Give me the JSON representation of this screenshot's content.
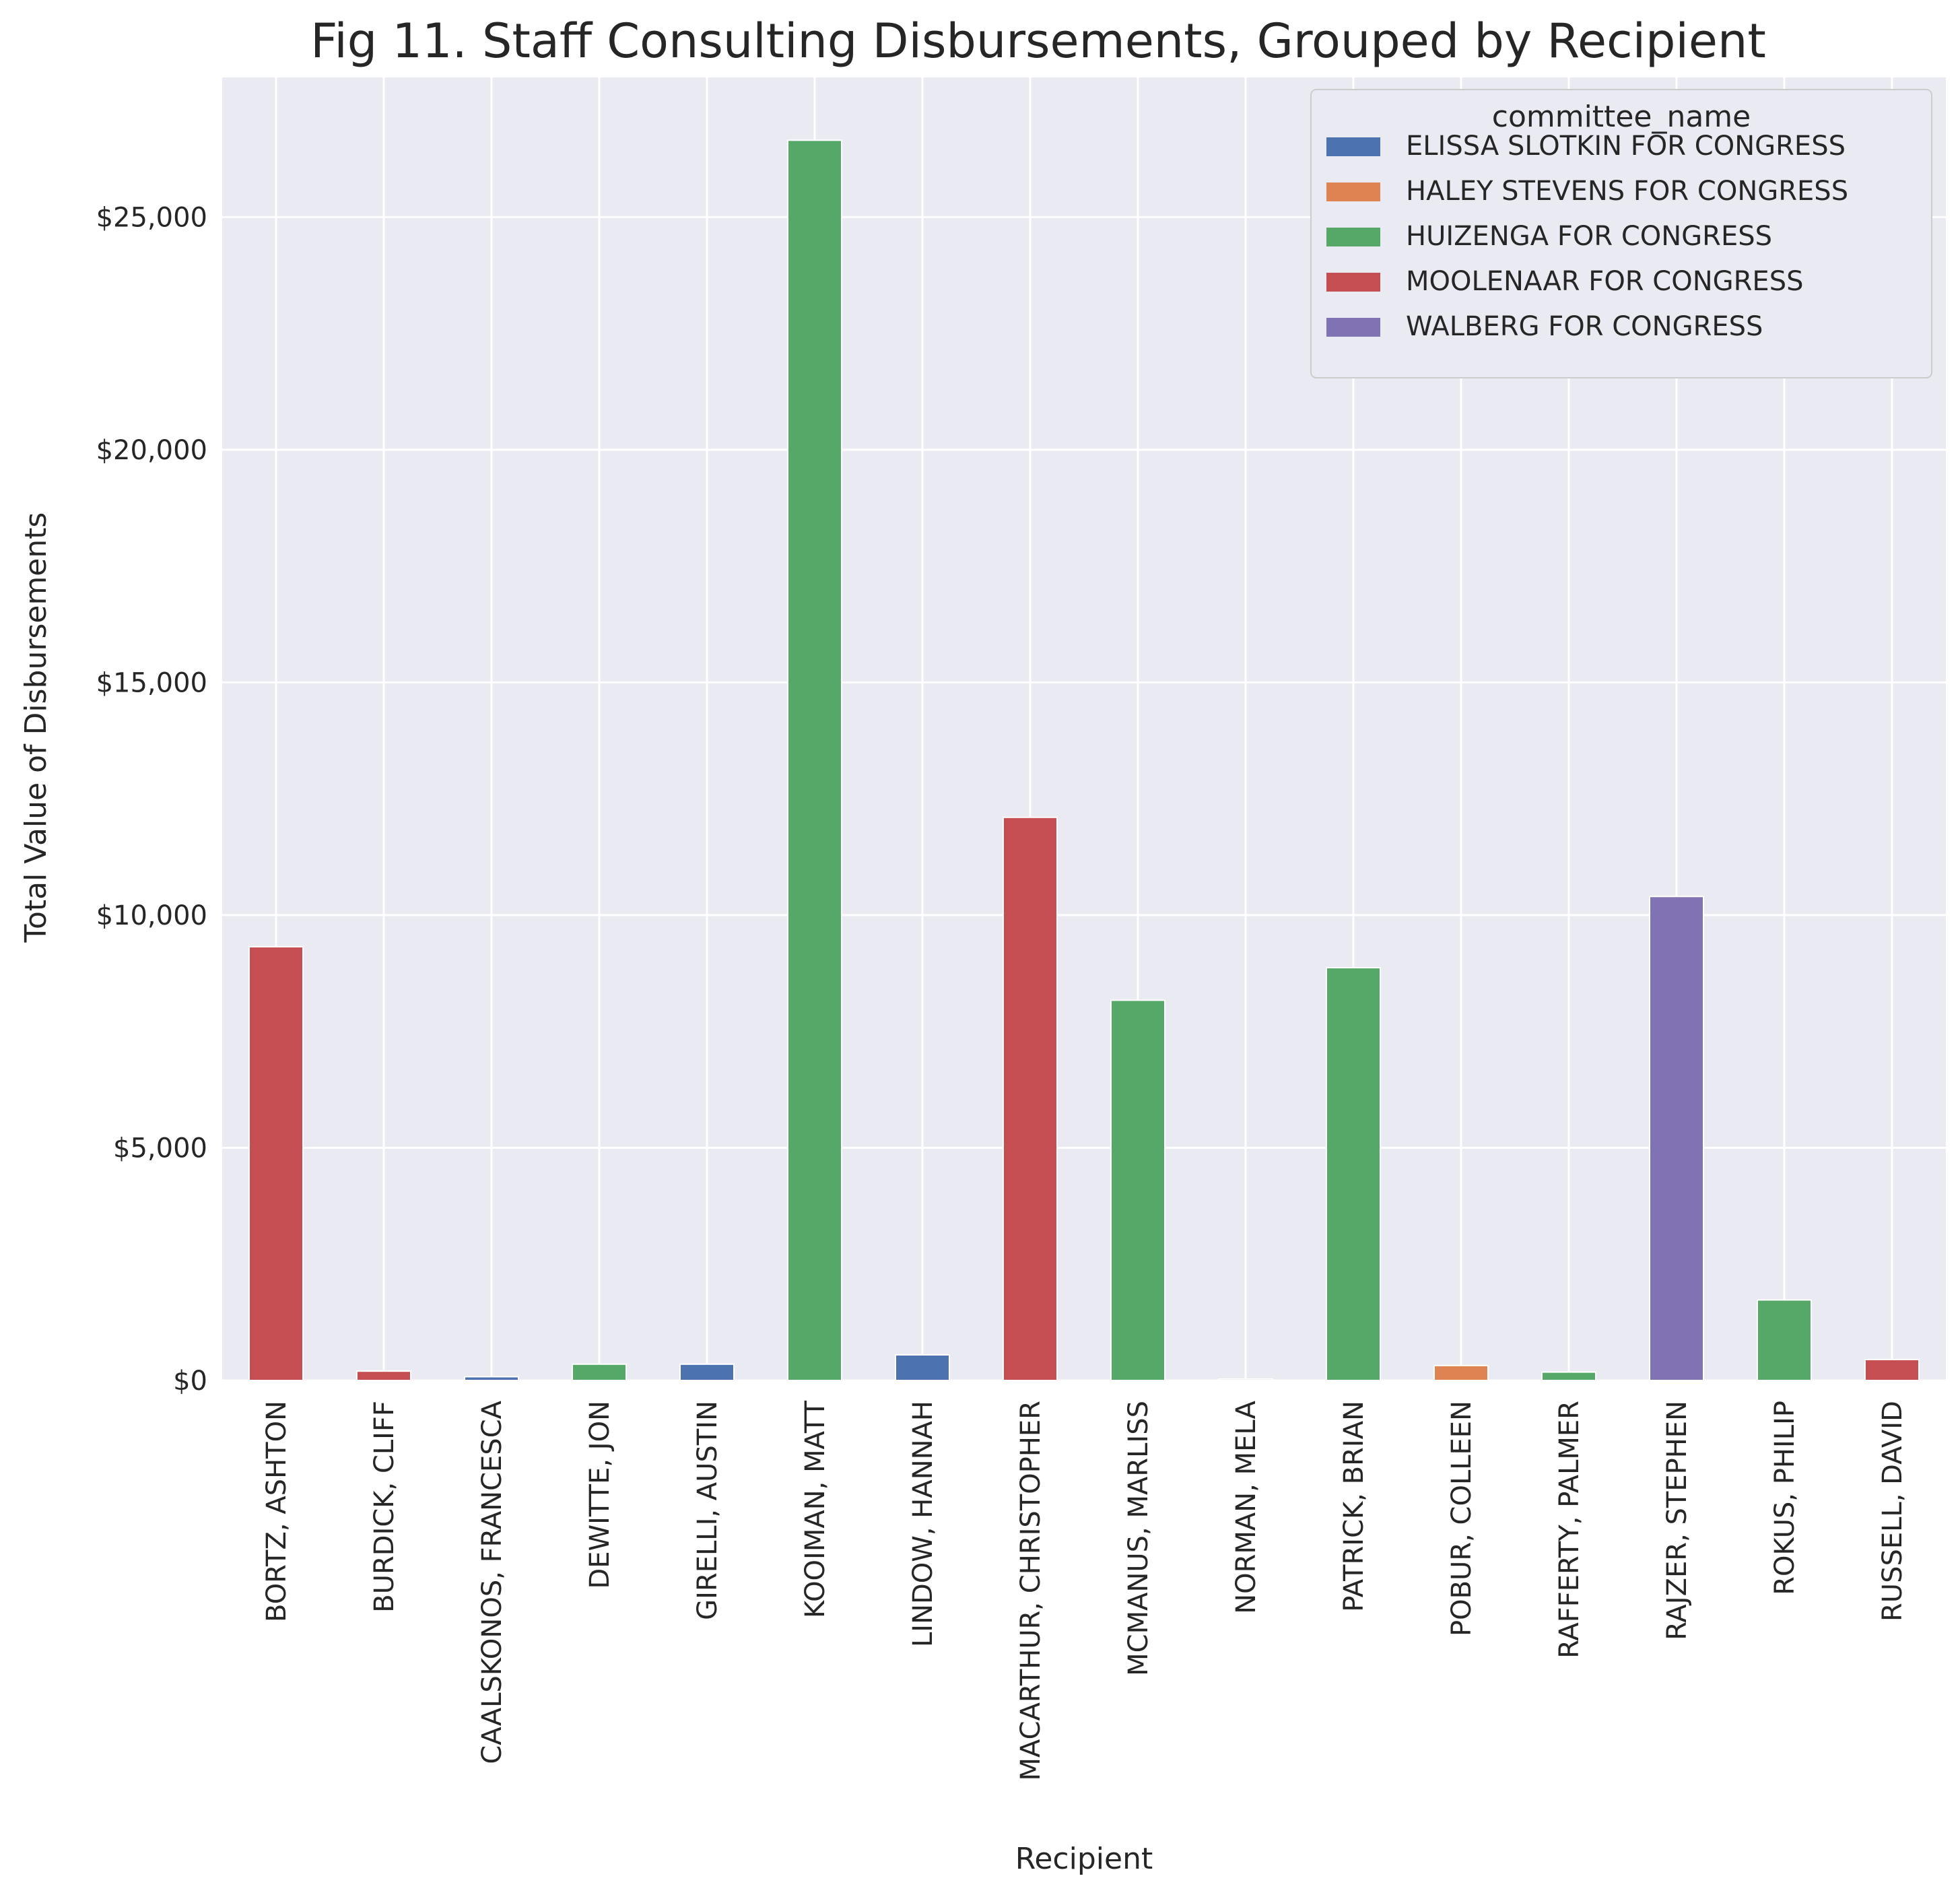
{
  "chart_data": {
    "type": "bar",
    "title": "Fig 11. Staff Consulting Disbursements, Grouped by Recipient",
    "xlabel": "Recipient",
    "ylabel": "Total Value of Disbursements",
    "ylim": [
      0,
      28000
    ],
    "yticks": [
      0,
      5000,
      10000,
      15000,
      20000,
      25000
    ],
    "ytick_labels": [
      "$0",
      "$5,000",
      "$10,000",
      "$15,000",
      "$20,000",
      "$25,000"
    ],
    "grid": true,
    "legend": {
      "title": "committee_name",
      "placement": "top-right"
    },
    "categories": [
      "BORTZ, ASHTON",
      "BURDICK, CLIFF",
      "CAALSKONOS, FRANCESCA",
      "DEWITTE, JON",
      "GIRELLI, AUSTIN",
      "KOOIMAN, MATT",
      "LINDOW, HANNAH",
      "MACARTHUR, CHRISTOPHER",
      "MCMANUS, MARLISS",
      "NORMAN, MELA",
      "PATRICK, BRIAN",
      "POBUR, COLLEEN",
      "RAFFERTY, PALMER",
      "RAJZER, STEPHEN",
      "ROKUS, PHILIP",
      "RUSSELL, DAVID"
    ],
    "series": [
      {
        "name": "ELISSA SLOTKIN FOR CONGRESS",
        "color": "#4c72b0",
        "values": [
          0,
          0,
          80,
          0,
          350,
          0,
          550,
          0,
          0,
          30,
          0,
          0,
          0,
          0,
          0,
          0
        ]
      },
      {
        "name": "HALEY STEVENS FOR CONGRESS",
        "color": "#dd8452",
        "values": [
          0,
          0,
          0,
          0,
          0,
          0,
          0,
          0,
          0,
          0,
          0,
          320,
          0,
          0,
          0,
          0
        ]
      },
      {
        "name": "HUIZENGA FOR CONGRESS",
        "color": "#55a868",
        "values": [
          0,
          0,
          0,
          350,
          0,
          26650,
          0,
          0,
          8170,
          0,
          8870,
          0,
          180,
          0,
          1730,
          0
        ]
      },
      {
        "name": "MOOLENAAR FOR CONGRESS",
        "color": "#c44e52",
        "values": [
          9320,
          200,
          0,
          0,
          0,
          0,
          0,
          12100,
          0,
          0,
          0,
          0,
          0,
          0,
          0,
          450
        ]
      },
      {
        "name": "WALBERG FOR CONGRESS",
        "color": "#8172b3",
        "values": [
          0,
          0,
          0,
          0,
          0,
          0,
          0,
          0,
          0,
          0,
          0,
          0,
          0,
          10400,
          0,
          0
        ]
      }
    ]
  }
}
